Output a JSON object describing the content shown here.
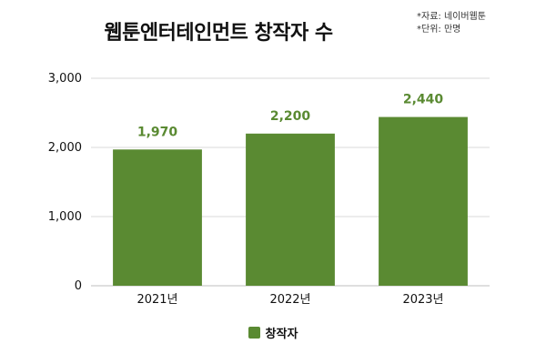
{
  "chart_data": {
    "type": "bar",
    "title": "웹툰엔터테인먼트 창작자 수",
    "notes": [
      "*자료: 네이버웹툰",
      "*단위: 만명"
    ],
    "categories": [
      "2021년",
      "2022년",
      "2023년"
    ],
    "series": [
      {
        "name": "창작자",
        "values": [
          1970,
          2200,
          2440
        ]
      }
    ],
    "data_labels": [
      "1,970",
      "2,200",
      "2,440"
    ],
    "yticks": [
      0,
      1000,
      2000,
      3000
    ],
    "ytick_labels": [
      "0",
      "1,000",
      "2,000",
      "3,000"
    ],
    "ylim": [
      0,
      3000
    ],
    "xlabel": "",
    "ylabel": "",
    "grid": true,
    "legend_position": "bottom-center",
    "bar_color": "#5a8a32",
    "label_color": "#5a8a32",
    "grid_color": "#d9d9d9"
  }
}
